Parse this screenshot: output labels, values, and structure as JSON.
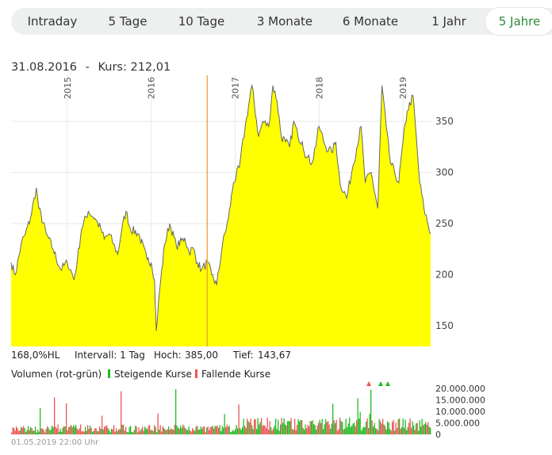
{
  "tabs": [
    {
      "label": "Intraday"
    },
    {
      "label": "5 Tage"
    },
    {
      "label": "10 Tage"
    },
    {
      "label": "3 Monate"
    },
    {
      "label": "6 Monate"
    },
    {
      "label": "1 Jahr"
    },
    {
      "label": "5 Jahre",
      "active": true
    }
  ],
  "header": {
    "date": "31.08.2016",
    "separator": "-",
    "kurs_label": "Kurs:",
    "kurs_value": "212,01"
  },
  "stats": {
    "hl": "168,0%HL",
    "interval": "Intervall: 1 Tag",
    "hoch_label": "Hoch:",
    "hoch_value": "385,00",
    "tief_label": "Tief:",
    "tief_value": "143,67"
  },
  "legend": {
    "title": "Volumen (rot-grün)",
    "rising": "Steigende Kurse",
    "falling": "Fallende Kurse"
  },
  "footer": {
    "timestamp": "01.05.2019 22:00 Uhr"
  },
  "colors": {
    "fill": "#ffff00",
    "line": "#666666",
    "crosshair": "#f0a030",
    "rising": "#22bb22",
    "falling": "#ee5555",
    "active_tab": "#2e8b3a"
  },
  "chart_data": [
    {
      "type": "area",
      "x_tick_labels": [
        "2015",
        "2016",
        "2017",
        "2018",
        "2019"
      ],
      "x_tick_positions": [
        2015.0,
        2016.0,
        2017.0,
        2018.0,
        2019.0
      ],
      "xlim": [
        2014.33,
        2019.33
      ],
      "ylim": [
        130,
        395
      ],
      "y_ticks": [
        150,
        200,
        250,
        300,
        350
      ],
      "y_tick_labels": [
        "150",
        "200",
        "250",
        "300",
        "350"
      ],
      "grid": true,
      "crosshair_x": 2016.667,
      "x": [
        2014.33,
        2014.38,
        2014.45,
        2014.5,
        2014.56,
        2014.63,
        2014.66,
        2014.75,
        2014.83,
        2014.92,
        2015.0,
        2015.04,
        2015.08,
        2015.12,
        2015.17,
        2015.25,
        2015.33,
        2015.4,
        2015.44,
        2015.5,
        2015.55,
        2015.6,
        2015.65,
        2015.7,
        2015.75,
        2015.85,
        2015.95,
        2016.0,
        2016.04,
        2016.06,
        2016.1,
        2016.16,
        2016.22,
        2016.3,
        2016.4,
        2016.45,
        2016.5,
        2016.55,
        2016.6,
        2016.67,
        2016.72,
        2016.78,
        2016.85,
        2016.92,
        2016.98,
        2017.05,
        2017.12,
        2017.2,
        2017.28,
        2017.33,
        2017.4,
        2017.45,
        2017.5,
        2017.55,
        2017.6,
        2017.65,
        2017.7,
        2017.75,
        2017.8,
        2017.85,
        2017.92,
        2018.0,
        2018.08,
        2018.15,
        2018.2,
        2018.25,
        2018.33,
        2018.4,
        2018.5,
        2018.55,
        2018.62,
        2018.7,
        2018.75,
        2018.8,
        2018.85,
        2018.9,
        2018.95,
        2019.0,
        2019.05,
        2019.12,
        2019.2,
        2019.25,
        2019.33
      ],
      "y": [
        212,
        200,
        230,
        240,
        255,
        285,
        265,
        240,
        225,
        205,
        212,
        205,
        195,
        215,
        245,
        262,
        255,
        245,
        235,
        240,
        230,
        220,
        245,
        262,
        245,
        240,
        215,
        212,
        195,
        145,
        185,
        230,
        250,
        228,
        236,
        222,
        226,
        212,
        205,
        212,
        200,
        190,
        230,
        255,
        290,
        305,
        345,
        385,
        335,
        350,
        345,
        385,
        370,
        335,
        330,
        325,
        350,
        335,
        330,
        315,
        310,
        345,
        325,
        320,
        330,
        290,
        275,
        305,
        345,
        290,
        300,
        265,
        385,
        345,
        310,
        300,
        290,
        330,
        360,
        375,
        290,
        265,
        240
      ]
    },
    {
      "type": "bar",
      "name": "Volumen (rot-grün)",
      "ylim": [
        0,
        22000000
      ],
      "y_ticks": [
        0,
        5000000,
        10000000,
        15000000,
        20000000
      ],
      "y_tick_labels": [
        "0",
        "5.000.000",
        "10.000.000",
        "15.000.000",
        "20.000.000"
      ],
      "series": [
        {
          "name": "Steigende Kurse"
        },
        {
          "name": "Fallende Kurse"
        }
      ]
    }
  ]
}
